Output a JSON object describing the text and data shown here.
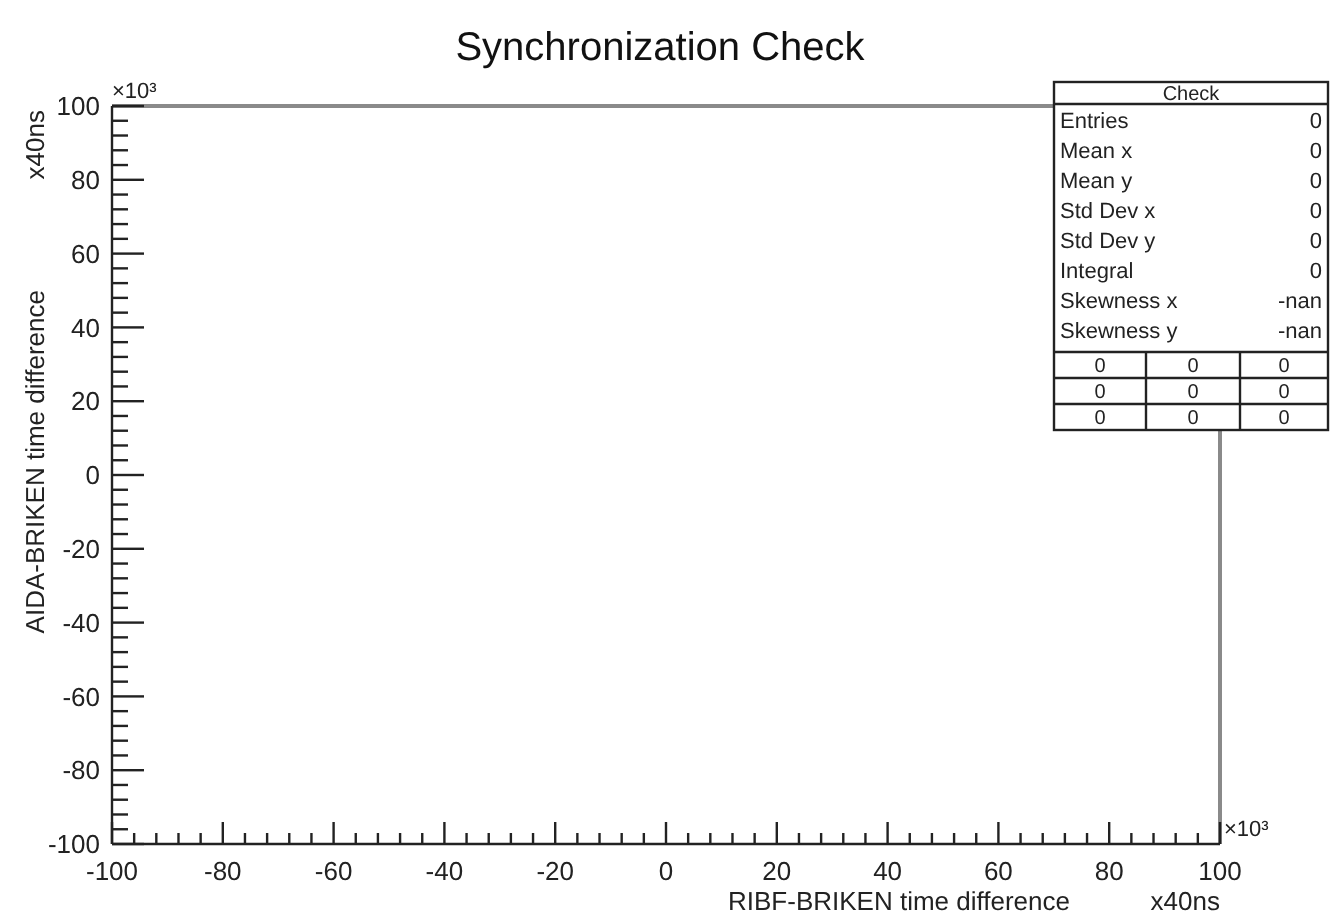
{
  "chart_data": {
    "type": "scatter",
    "title": "Synchronization Check",
    "xlabel": "RIBF-BRIKEN time difference      x40ns",
    "ylabel": "AIDA-BRIKEN time difference      x40ns",
    "xlim": [
      -100,
      100
    ],
    "ylim": [
      -100,
      100
    ],
    "xticks": [
      -100,
      {
        "value": -96,
        "label": null
      },
      {
        "value": -92,
        "label": null
      },
      {
        "value": -88,
        "label": null
      },
      {
        "value": -84,
        "label": null
      },
      -80,
      {
        "value": -76,
        "label": null
      },
      {
        "value": -72,
        "label": null
      },
      {
        "value": -68,
        "label": null
      },
      {
        "value": -64,
        "label": null
      },
      -60,
      {
        "value": -56,
        "label": null
      },
      {
        "value": -52,
        "label": null
      },
      {
        "value": -48,
        "label": null
      },
      {
        "value": -44,
        "label": null
      },
      -40,
      {
        "value": -36,
        "label": null
      },
      {
        "value": -32,
        "label": null
      },
      {
        "value": -28,
        "label": null
      },
      {
        "value": -24,
        "label": null
      },
      -20,
      {
        "value": -16,
        "label": null
      },
      {
        "value": -12,
        "label": null
      },
      {
        "value": -8,
        "label": null
      },
      {
        "value": -4,
        "label": null
      },
      0,
      {
        "value": 4,
        "label": null
      },
      {
        "value": 8,
        "label": null
      },
      {
        "value": 12,
        "label": null
      },
      {
        "value": 16,
        "label": null
      },
      20,
      {
        "value": 24,
        "label": null
      },
      {
        "value": 28,
        "label": null
      },
      {
        "value": 32,
        "label": null
      },
      {
        "value": 36,
        "label": null
      },
      40,
      {
        "value": 44,
        "label": null
      },
      {
        "value": 48,
        "label": null
      },
      {
        "value": 52,
        "label": null
      },
      {
        "value": 56,
        "label": null
      },
      60,
      {
        "value": 64,
        "label": null
      },
      {
        "value": 68,
        "label": null
      },
      {
        "value": 72,
        "label": null
      },
      {
        "value": 76,
        "label": null
      },
      80,
      {
        "value": 84,
        "label": null
      },
      {
        "value": 88,
        "label": null
      },
      {
        "value": 92,
        "label": null
      },
      {
        "value": 96,
        "label": null
      },
      100
    ],
    "yticks": [
      -100,
      {
        "value": -96,
        "label": null
      },
      {
        "value": -92,
        "label": null
      },
      {
        "value": -88,
        "label": null
      },
      {
        "value": -84,
        "label": null
      },
      -80,
      {
        "value": -76,
        "label": null
      },
      {
        "value": -72,
        "label": null
      },
      {
        "value": -68,
        "label": null
      },
      {
        "value": -64,
        "label": null
      },
      -60,
      {
        "value": -56,
        "label": null
      },
      {
        "value": -52,
        "label": null
      },
      {
        "value": -48,
        "label": null
      },
      {
        "value": -44,
        "label": null
      },
      -40,
      {
        "value": -36,
        "label": null
      },
      {
        "value": -32,
        "label": null
      },
      {
        "value": -28,
        "label": null
      },
      {
        "value": -24,
        "label": null
      },
      -20,
      {
        "value": -16,
        "label": null
      },
      {
        "value": -12,
        "label": null
      },
      {
        "value": -8,
        "label": null
      },
      {
        "value": -4,
        "label": null
      },
      0,
      {
        "value": 4,
        "label": null
      },
      {
        "value": 8,
        "label": null
      },
      {
        "value": 12,
        "label": null
      },
      {
        "value": 16,
        "label": null
      },
      20,
      {
        "value": 24,
        "label": null
      },
      {
        "value": 28,
        "label": null
      },
      {
        "value": 32,
        "label": null
      },
      {
        "value": 36,
        "label": null
      },
      40,
      {
        "value": 44,
        "label": null
      },
      {
        "value": 48,
        "label": null
      },
      {
        "value": 52,
        "label": null
      },
      {
        "value": 56,
        "label": null
      },
      60,
      {
        "value": 64,
        "label": null
      },
      {
        "value": 68,
        "label": null
      },
      {
        "value": 72,
        "label": null
      },
      {
        "value": 76,
        "label": null
      },
      80,
      {
        "value": 84,
        "label": null
      },
      {
        "value": 88,
        "label": null
      },
      {
        "value": 92,
        "label": null
      },
      {
        "value": 96,
        "label": null
      },
      100
    ],
    "annotations": [
      "×10³",
      "×10³",
      "Check",
      "Entries 0",
      "Mean x 0",
      "Mean y 0",
      "Std Dev x 0",
      "Std Dev y 0",
      "Integral 0",
      "Skewness x -nan",
      "Skewness y -nan",
      "0 0 0",
      "0 0 0",
      "0 0 0"
    ]
  }
}
